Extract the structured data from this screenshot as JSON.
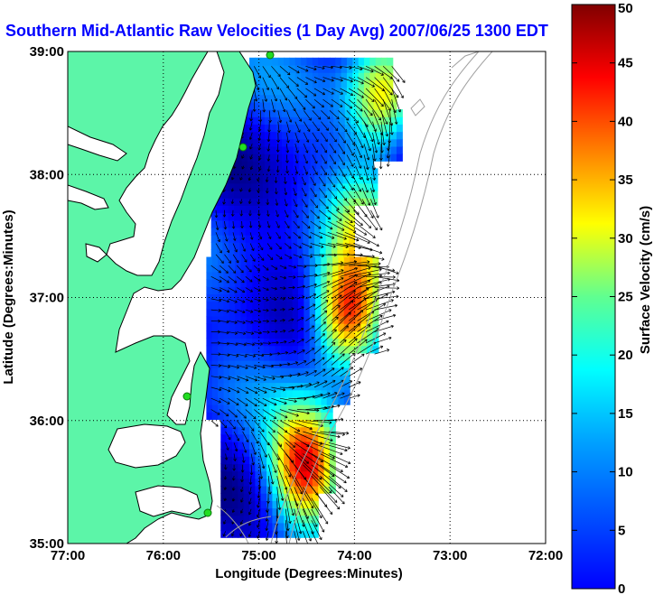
{
  "chart_data": {
    "type": "heatmap",
    "title": "Southern Mid-Atlantic Raw Velocities (1 Day Avg) 2007/06/25 1300 EDT",
    "xlabel": "Longitude (Degrees:Minutes)",
    "ylabel": "Latitude (Degrees:Minutes)",
    "x_ticks": [
      "77:00",
      "76:00",
      "75:00",
      "74:00",
      "73:00",
      "72:00"
    ],
    "x_values": [
      -77,
      -76,
      -75,
      -74,
      -73,
      -72
    ],
    "y_ticks": [
      "39:00",
      "38:00",
      "37:00",
      "36:00",
      "35:00"
    ],
    "y_values": [
      39,
      38,
      37,
      36,
      35
    ],
    "xlim": [
      -77,
      -72
    ],
    "ylim": [
      35,
      39
    ],
    "grid": true,
    "colorbar": {
      "label": "Surface Velocity (cm/s)",
      "min": 0,
      "max": 50,
      "ticks": [
        50,
        45,
        40,
        35,
        30,
        25,
        20,
        15,
        10,
        5,
        0
      ],
      "colormap": "jet"
    },
    "velocity_field": {
      "lon_range": [
        -75.6,
        -73.5
      ],
      "lat_range": [
        35.05,
        38.9
      ],
      "hotspots": [
        {
          "lon": -74.1,
          "lat": 36.85,
          "speed_cm_s": 48
        },
        {
          "lon": -74.55,
          "lat": 35.6,
          "speed_cm_s": 47
        },
        {
          "lon": -73.75,
          "lat": 38.6,
          "speed_cm_s": 36
        },
        {
          "lon": -73.95,
          "lat": 37.6,
          "speed_cm_s": 26
        }
      ]
    },
    "land_color": "#5cf5a8",
    "land_outline_color": "#000000",
    "bathymetry_color": "#a0a0a0",
    "station_color": "#22dd22"
  }
}
